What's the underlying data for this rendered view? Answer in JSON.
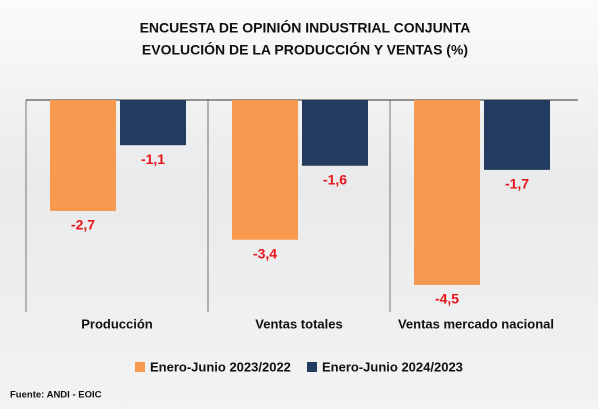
{
  "chart_data": {
    "type": "bar",
    "title": "ENCUESTA DE OPINIÓN INDUSTRIAL CONJUNTA",
    "subtitle": "EVOLUCIÓN DE LA PRODUCCIÓN Y VENTAS (%)",
    "categories": [
      "Producción",
      "Ventas totales",
      "Ventas mercado nacional"
    ],
    "series": [
      {
        "name": "Enero-Junio 2023/2022",
        "color": "#f79a4f",
        "values": [
          -2.7,
          -3.4,
          -4.5
        ],
        "value_labels": [
          "-2,7",
          "-3,4",
          "-4,5"
        ]
      },
      {
        "name": "Enero-Junio 2024/2023",
        "color": "#223b5e",
        "values": [
          -1.1,
          -1.6,
          -1.7
        ],
        "value_labels": [
          "-1,1",
          "-1,6",
          "-1,7"
        ]
      }
    ],
    "ylim": [
      -5,
      0
    ],
    "label_color": "#e8141b",
    "source": "Fuente: ANDI - EOIC"
  }
}
